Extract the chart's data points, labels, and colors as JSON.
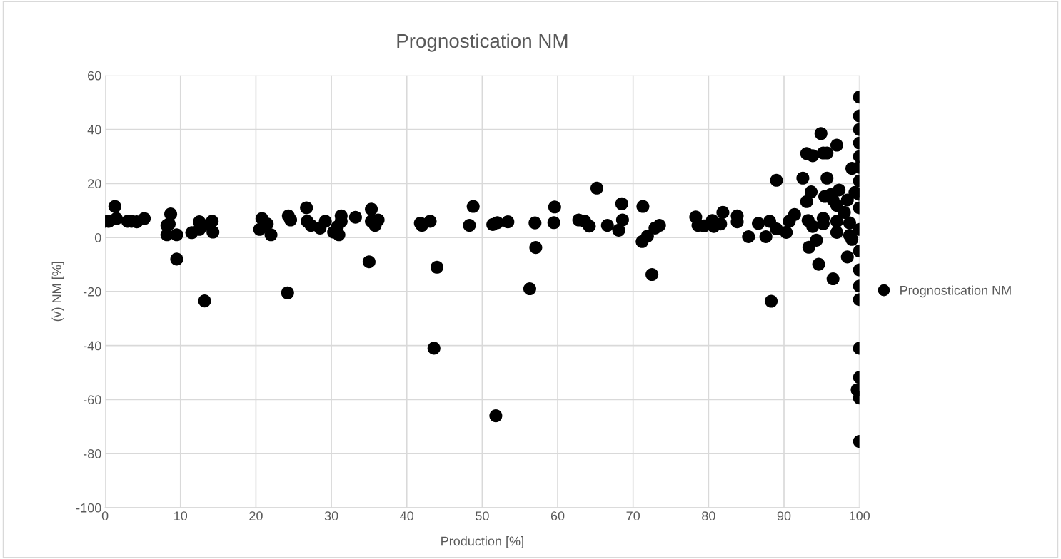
{
  "chart_data": {
    "type": "scatter",
    "title": "Prognostication NM",
    "xlabel": "Production [%]",
    "ylabel": "(v) NM [%]",
    "xlim": [
      0,
      100
    ],
    "ylim": [
      -100,
      60
    ],
    "xticks": [
      0,
      10,
      20,
      30,
      40,
      50,
      60,
      70,
      80,
      90,
      100
    ],
    "yticks": [
      -100,
      -80,
      -60,
      -40,
      -20,
      0,
      20,
      40,
      60
    ],
    "grid": true,
    "legend": "right",
    "marker": "circle",
    "series": [
      {
        "name": "Prognostication NM",
        "color": "#000000",
        "x": [
          0,
          0.5,
          1.3,
          1.5,
          3,
          3.5,
          4.2,
          5.2,
          8.2,
          8.2,
          8.5,
          8.7,
          9.5,
          9.5,
          11.5,
          12.5,
          12.5,
          13,
          13.2,
          14.2,
          14.3,
          20.5,
          20.8,
          21.5,
          22,
          24.2,
          24.3,
          24.6,
          26.7,
          26.8,
          27.3,
          28.5,
          29.2,
          30.3,
          30.8,
          31,
          31.3,
          31.3,
          33.2,
          35,
          35.3,
          35.3,
          35.8,
          36.2,
          41.8,
          42,
          43.1,
          43.6,
          44,
          48.3,
          48.8,
          51.4,
          51.8,
          52,
          53.4,
          56.3,
          57,
          57.1,
          59.5,
          59.6,
          62.8,
          63.6,
          64.2,
          65.2,
          66.6,
          68.1,
          68.5,
          68.6,
          71.2,
          71.3,
          71.9,
          72.5,
          72.9,
          73.5,
          78.3,
          78.6,
          79.4,
          80.5,
          80.7,
          81.6,
          81.9,
          83.8,
          83.8,
          85.3,
          86.6,
          87.6,
          88.1,
          88.3,
          89,
          89,
          90.3,
          90.7,
          91.4,
          92.5,
          93,
          93,
          93.2,
          93.3,
          93.6,
          93.8,
          93.8,
          94.3,
          94.6,
          94.9,
          95.2,
          95.2,
          95.2,
          95.4,
          95.7,
          95.7,
          96.2,
          96.5,
          96.5,
          97,
          97,
          97,
          97,
          97.3,
          98,
          98.4,
          98.4,
          98.7,
          98.7,
          99,
          99,
          99.4,
          99.7,
          100,
          100,
          100,
          100,
          100,
          100,
          100,
          100,
          100,
          100,
          100,
          100,
          100,
          100,
          100,
          100,
          100,
          100
        ],
        "values": [
          6,
          6,
          11.5,
          7,
          6,
          6,
          5.8,
          7,
          1,
          4.5,
          5,
          8.7,
          -8,
          1,
          1.8,
          5.8,
          3,
          4.5,
          -23.5,
          6,
          2,
          3,
          7,
          5,
          1,
          -20.5,
          8,
          6.5,
          11,
          6,
          4.5,
          3.5,
          6,
          2,
          4,
          1,
          8,
          6,
          7.5,
          -9,
          10.5,
          6,
          4.5,
          6.5,
          5.3,
          4.5,
          6,
          -41,
          -11,
          4.5,
          11.5,
          4.8,
          -66,
          5.5,
          5.8,
          -19,
          5.4,
          -3.7,
          5.5,
          11.3,
          6.5,
          6,
          4.2,
          18.3,
          4.5,
          2.7,
          12.5,
          6.5,
          -1.5,
          11.5,
          0.5,
          -13.7,
          3.5,
          4.5,
          7.6,
          4.5,
          4.3,
          6.3,
          4.1,
          5,
          9.3,
          8,
          5.8,
          0.3,
          5.2,
          0.3,
          6,
          -23.6,
          3.2,
          21.2,
          1.9,
          6,
          8.5,
          22,
          31.1,
          13.3,
          6.3,
          -3.6,
          16.9,
          30.3,
          4.1,
          -1,
          -9.9,
          38.5,
          31.3,
          7.1,
          5.1,
          15.2,
          31.3,
          22,
          15.9,
          13.9,
          -15.3,
          34.2,
          11.9,
          6,
          1.9,
          17.6,
          9.3,
          13.9,
          -7.2,
          5.4,
          0.8,
          25.6,
          -0.7,
          16.7,
          -56.4,
          52,
          45,
          40,
          35,
          30,
          21,
          11,
          3,
          -5,
          -12,
          -18,
          -23,
          -41,
          -51.8,
          -59.4,
          -75.5,
          16,
          26
        ]
      }
    ]
  }
}
